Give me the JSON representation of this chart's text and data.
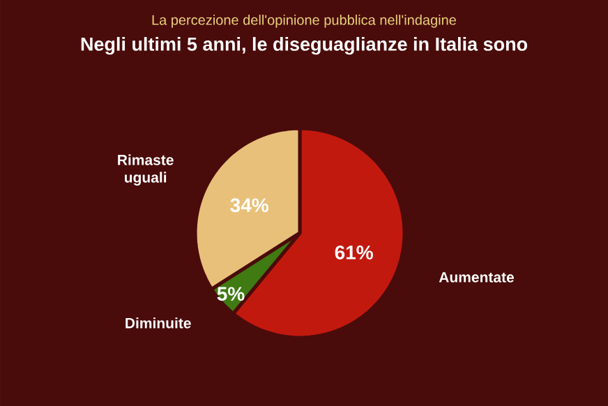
{
  "chart_data": {
    "type": "pie",
    "title": "La percezione dell'opinione pubblica nell'indagine",
    "subtitle": "Negli ultimi 5 anni, le diseguaglianze in Italia sono",
    "categories": [
      "Aumentate",
      "Diminuite",
      "Rimaste uguali"
    ],
    "values": [
      61,
      5,
      34
    ],
    "value_labels": [
      "61%",
      "5%",
      "34%"
    ],
    "colors": [
      "#c2190f",
      "#3f7a12",
      "#e8c07a"
    ]
  }
}
